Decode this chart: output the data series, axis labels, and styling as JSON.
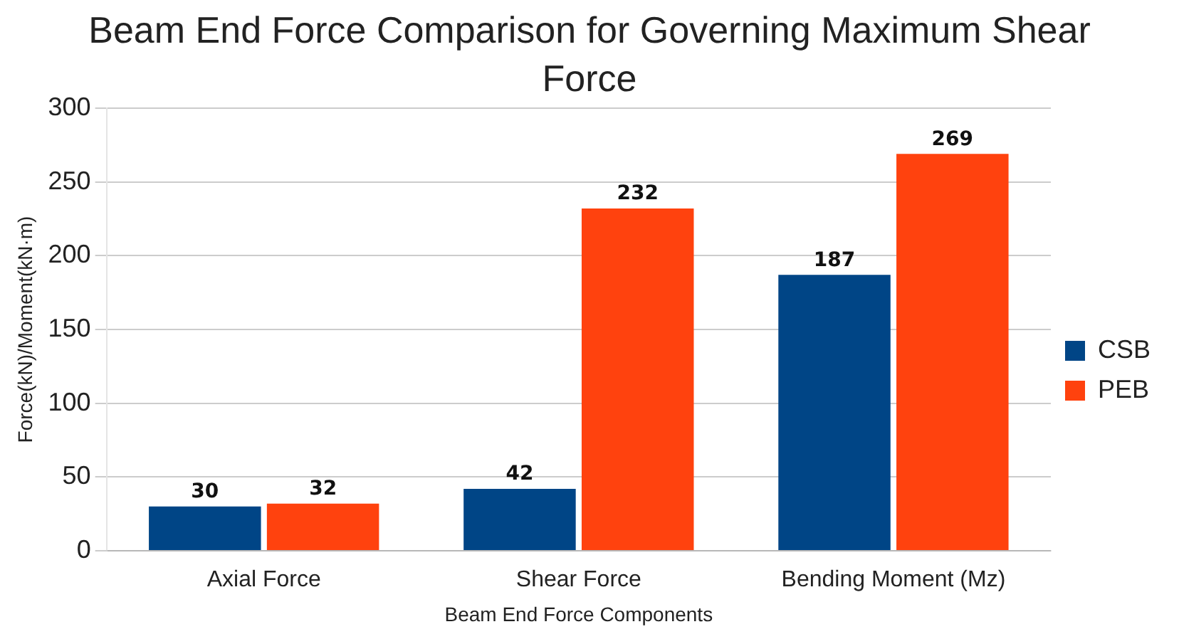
{
  "chart_data": {
    "type": "bar",
    "title": "Beam End Force Comparison for Governing Maximum Shear Force",
    "xlabel": "Beam End Force Components",
    "ylabel": "Force(kN)/Moment(kN·m)",
    "categories": [
      "Axial Force",
      "Shear Force",
      "Bending Moment (Mz)"
    ],
    "series": [
      {
        "name": "CSB",
        "color": "#004586",
        "values": [
          30,
          42,
          187
        ]
      },
      {
        "name": "PEB",
        "color": "#ff420e",
        "values": [
          32,
          232,
          269
        ]
      }
    ],
    "ylim": [
      0,
      300
    ],
    "yticks": [
      0,
      50,
      100,
      150,
      200,
      250,
      300
    ],
    "grid": "y",
    "legend": "right",
    "data_labels": true
  }
}
